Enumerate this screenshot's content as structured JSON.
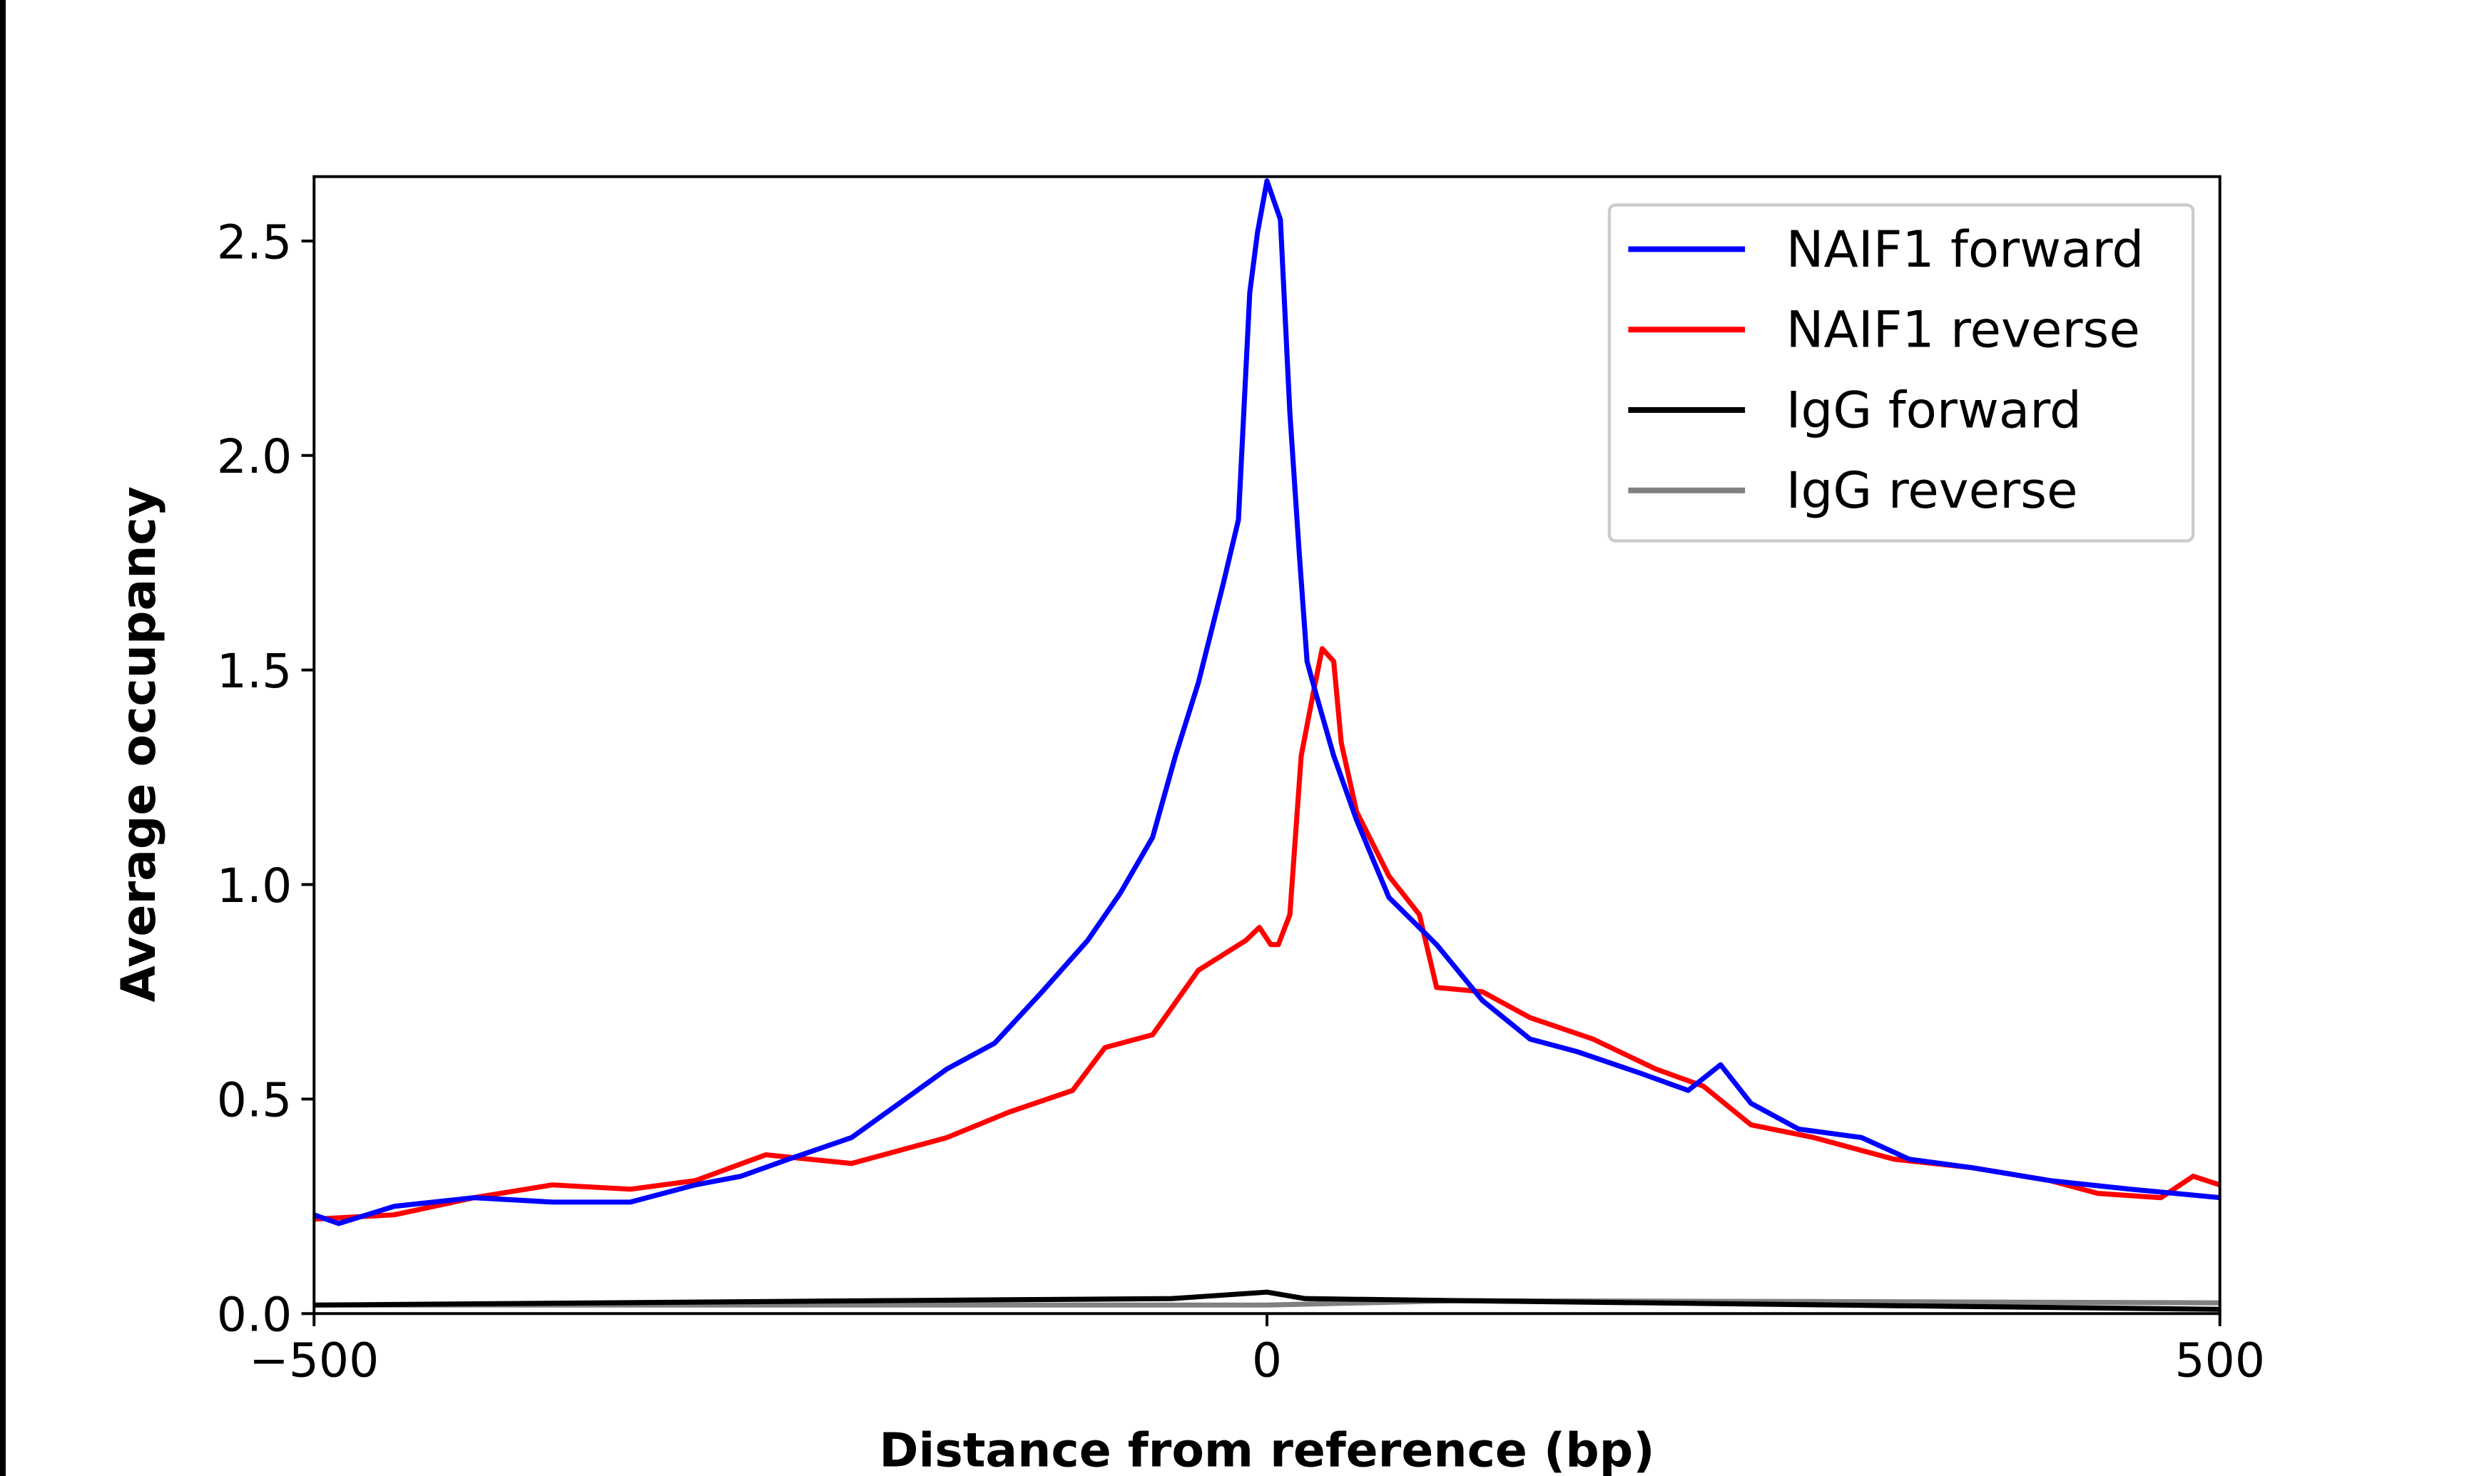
{
  "chart_data": {
    "type": "line",
    "title": "",
    "xlabel": "Distance from reference (bp)",
    "ylabel": "Average occupancy",
    "xlim": [
      -500,
      500
    ],
    "ylim": [
      0,
      2.65
    ],
    "xticks": [
      -500,
      0,
      500
    ],
    "xtick_labels": [
      "−500",
      "0",
      "500"
    ],
    "yticks": [
      0.0,
      0.5,
      1.0,
      1.5,
      2.0,
      2.5
    ],
    "ytick_labels": [
      "0.0",
      "0.5",
      "1.0",
      "1.5",
      "2.0",
      "2.5"
    ],
    "grid": false,
    "legend_position": "top-right",
    "series": [
      {
        "name": "NAIF1 forward",
        "color": "#0000ff",
        "x": [
          -500,
          -487,
          -458,
          -416,
          -375,
          -334,
          -300,
          -276,
          -251,
          -218,
          -193,
          -168,
          -143,
          -118,
          -94,
          -77,
          -60,
          -48,
          -36,
          -23,
          -15,
          -9,
          -5,
          0,
          7,
          12,
          17,
          21,
          26,
          35,
          47,
          64,
          89,
          113,
          138,
          163,
          196,
          221,
          238,
          254,
          279,
          312,
          337,
          370,
          411,
          453,
          500
        ],
        "y": [
          0.23,
          0.21,
          0.25,
          0.27,
          0.26,
          0.26,
          0.3,
          0.32,
          0.36,
          0.41,
          0.49,
          0.57,
          0.63,
          0.75,
          0.87,
          0.98,
          1.11,
          1.3,
          1.47,
          1.7,
          1.85,
          2.38,
          2.52,
          2.64,
          2.55,
          2.1,
          1.77,
          1.52,
          1.44,
          1.3,
          1.15,
          0.97,
          0.86,
          0.73,
          0.64,
          0.61,
          0.56,
          0.52,
          0.58,
          0.49,
          0.43,
          0.41,
          0.36,
          0.34,
          0.31,
          0.29,
          0.27
        ]
      },
      {
        "name": "NAIF1 reverse",
        "color": "#ff0000",
        "x": [
          -500,
          -458,
          -416,
          -375,
          -334,
          -300,
          -263,
          -218,
          -168,
          -135,
          -102,
          -85,
          -60,
          -36,
          -11,
          -4,
          2,
          6,
          12,
          18,
          24,
          29,
          35,
          39,
          47,
          64,
          80,
          89,
          113,
          138,
          171,
          204,
          229,
          254,
          287,
          329,
          370,
          411,
          436,
          469,
          486,
          500
        ],
        "y": [
          0.22,
          0.23,
          0.27,
          0.3,
          0.29,
          0.31,
          0.37,
          0.35,
          0.41,
          0.47,
          0.52,
          0.62,
          0.65,
          0.8,
          0.87,
          0.9,
          0.86,
          0.86,
          0.93,
          1.3,
          1.44,
          1.55,
          1.52,
          1.33,
          1.17,
          1.02,
          0.93,
          0.76,
          0.75,
          0.69,
          0.64,
          0.57,
          0.53,
          0.44,
          0.41,
          0.36,
          0.34,
          0.31,
          0.28,
          0.27,
          0.32,
          0.3
        ]
      },
      {
        "name": "IgG forward",
        "color": "#000000",
        "x": [
          -500,
          -200,
          -50,
          0,
          20,
          100,
          300,
          500
        ],
        "y": [
          0.02,
          0.03,
          0.035,
          0.05,
          0.035,
          0.03,
          0.02,
          0.01
        ]
      },
      {
        "name": "IgG reverse",
        "color": "#808080",
        "x": [
          -500,
          -100,
          0,
          100,
          300,
          500
        ],
        "y": [
          0.02,
          0.02,
          0.02,
          0.03,
          0.028,
          0.025
        ]
      }
    ]
  }
}
